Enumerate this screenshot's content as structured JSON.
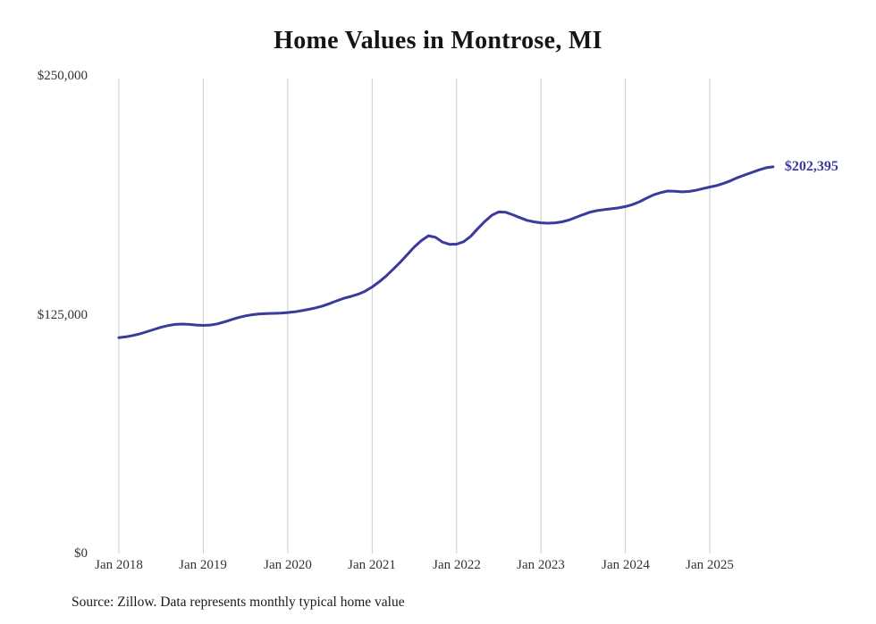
{
  "page": {
    "source_note": "Source: Zillow. Data represents monthly typical home value"
  },
  "chart_data": {
    "type": "line",
    "title": "Home Values in Montrose, MI",
    "series_name": "Monthly typical home value",
    "xlabel": "",
    "ylabel": "",
    "ylim": [
      0,
      250000
    ],
    "grid": "vertical-only",
    "legend": "none",
    "line_color": "#3b3a9d",
    "grid_color": "#cccccc",
    "end_label": "$202,395",
    "y_ticks": [
      {
        "value": 0,
        "label": "$0"
      },
      {
        "value": 125000,
        "label": "$125,000"
      },
      {
        "value": 250000,
        "label": "$250,000"
      }
    ],
    "x_ticks": [
      {
        "index": 0,
        "label": "Jan 2018"
      },
      {
        "index": 12,
        "label": "Jan 2019"
      },
      {
        "index": 24,
        "label": "Jan 2020"
      },
      {
        "index": 36,
        "label": "Jan 2021"
      },
      {
        "index": 48,
        "label": "Jan 2022"
      },
      {
        "index": 60,
        "label": "Jan 2023"
      },
      {
        "index": 72,
        "label": "Jan 2024"
      },
      {
        "index": 84,
        "label": "Jan 2025"
      }
    ],
    "x": [
      "2018-01",
      "2018-02",
      "2018-03",
      "2018-04",
      "2018-05",
      "2018-06",
      "2018-07",
      "2018-08",
      "2018-09",
      "2018-10",
      "2018-11",
      "2018-12",
      "2019-01",
      "2019-02",
      "2019-03",
      "2019-04",
      "2019-05",
      "2019-06",
      "2019-07",
      "2019-08",
      "2019-09",
      "2019-10",
      "2019-11",
      "2019-12",
      "2020-01",
      "2020-02",
      "2020-03",
      "2020-04",
      "2020-05",
      "2020-06",
      "2020-07",
      "2020-08",
      "2020-09",
      "2020-10",
      "2020-11",
      "2020-12",
      "2021-01",
      "2021-02",
      "2021-03",
      "2021-04",
      "2021-05",
      "2021-06",
      "2021-07",
      "2021-08",
      "2021-09",
      "2021-10",
      "2021-11",
      "2021-12",
      "2022-01",
      "2022-02",
      "2022-03",
      "2022-04",
      "2022-05",
      "2022-06",
      "2022-07",
      "2022-08",
      "2022-09",
      "2022-10",
      "2022-11",
      "2022-12",
      "2023-01",
      "2023-02",
      "2023-03",
      "2023-04",
      "2023-05",
      "2023-06",
      "2023-07",
      "2023-08",
      "2023-09",
      "2023-10",
      "2023-11",
      "2023-12",
      "2024-01",
      "2024-02",
      "2024-03",
      "2024-04",
      "2024-05",
      "2024-06",
      "2024-07",
      "2024-08",
      "2024-09",
      "2024-10",
      "2024-11",
      "2024-12",
      "2025-01",
      "2025-02",
      "2025-03",
      "2025-04",
      "2025-05",
      "2025-06",
      "2025-07",
      "2025-08",
      "2025-09",
      "2025-10"
    ],
    "values": [
      113000,
      113400,
      114100,
      115000,
      116100,
      117300,
      118400,
      119300,
      119900,
      120100,
      119900,
      119600,
      119400,
      119600,
      120200,
      121200,
      122400,
      123500,
      124400,
      125000,
      125400,
      125600,
      125700,
      125800,
      126100,
      126500,
      127100,
      127800,
      128600,
      129600,
      130900,
      132300,
      133600,
      134600,
      135700,
      137300,
      139500,
      142200,
      145300,
      148800,
      152500,
      156500,
      160500,
      163800,
      166300,
      165500,
      163000,
      161800,
      161900,
      163200,
      166000,
      170000,
      173800,
      177000,
      178800,
      178600,
      177300,
      175800,
      174400,
      173600,
      173100,
      172900,
      173100,
      173600,
      174600,
      176000,
      177400,
      178700,
      179500,
      180000,
      180400,
      180900,
      181600,
      182600,
      184100,
      186000,
      187700,
      188900,
      189700,
      189600,
      189300,
      189500,
      190100,
      191000,
      191800,
      192600,
      193800,
      195200,
      196800,
      198200,
      199500,
      200800,
      201900,
      202395
    ]
  }
}
